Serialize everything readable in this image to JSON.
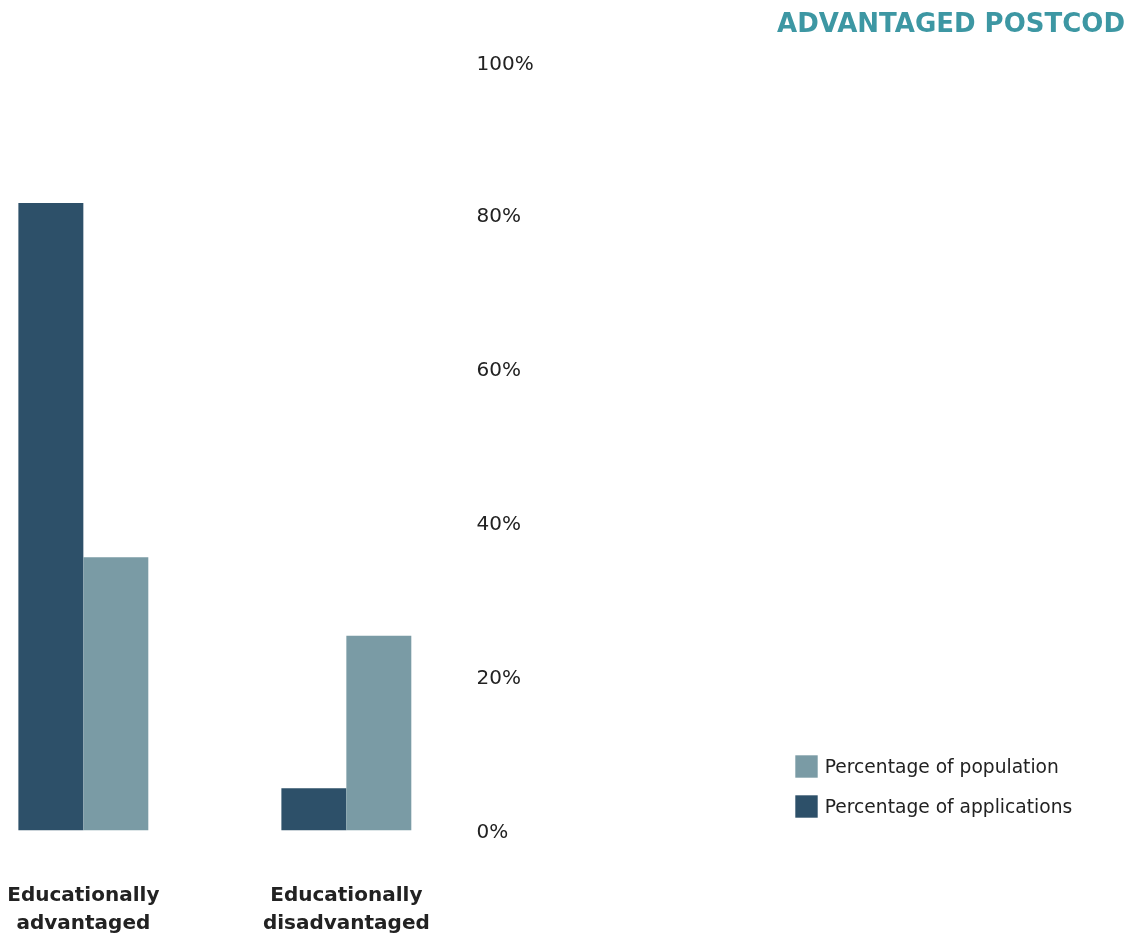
{
  "chart_data": {
    "type": "bar",
    "title": "ADVANTAGED POSTCOD",
    "categories": [
      "Educationally\nadvantaged",
      "Educationally\ndisadvantaged"
    ],
    "series": [
      {
        "name": "Percentage of applications",
        "color": "#2d5069",
        "values": [
          81.5,
          5.5
        ]
      },
      {
        "name": "Percentage of population",
        "color": "#7a9ba5",
        "values": [
          35.5,
          25.3
        ]
      }
    ],
    "ylim": [
      0,
      100
    ],
    "yticks": [
      {
        "value": 0,
        "label": "0%"
      },
      {
        "value": 20,
        "label": "20%"
      },
      {
        "value": 40,
        "label": "40%"
      },
      {
        "value": 60,
        "label": "60%"
      },
      {
        "value": 80,
        "label": "80%"
      },
      {
        "value": 100,
        "label": "100%"
      }
    ],
    "grid": false,
    "legend": "bottom right"
  }
}
